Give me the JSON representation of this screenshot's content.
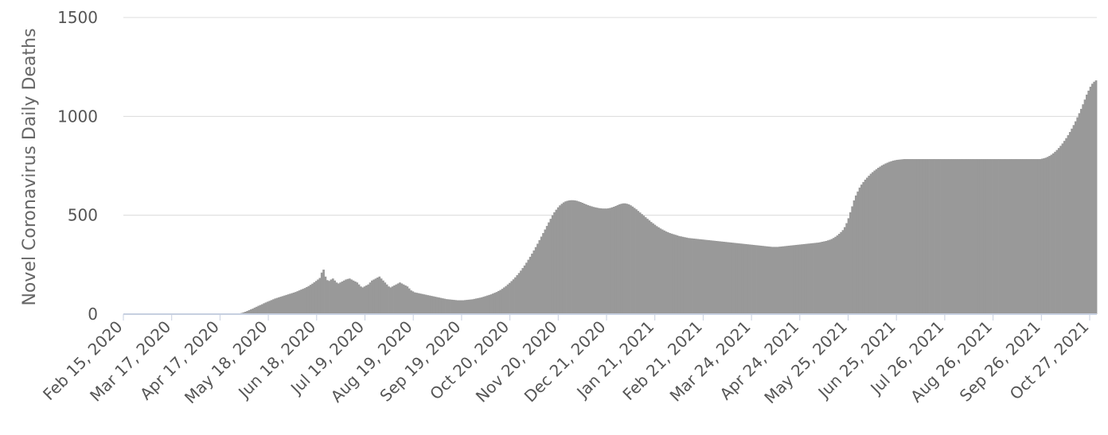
{
  "chart_data": {
    "type": "bar",
    "ylabel": "Novel Coronavirus Daily Deaths",
    "xlabel": "",
    "ylim": [
      0,
      1500
    ],
    "yticks": [
      "0",
      "500",
      "1000",
      "1500"
    ],
    "grid": true,
    "series_color": "#999999",
    "x_tick_labels": [
      "Feb 15, 2020",
      "Mar 17, 2020",
      "Apr 17, 2020",
      "May 18, 2020",
      "Jun 18, 2020",
      "Jul 19, 2020",
      "Aug 19, 2020",
      "Sep 19, 2020",
      "Oct 20, 2020",
      "Nov 20, 2020",
      "Dec 21, 2020",
      "Jan 21, 2021",
      "Feb 21, 2021",
      "Mar 24, 2021",
      "Apr 24, 2021",
      "May 25, 2021",
      "Jun 25, 2021",
      "Jul 26, 2021",
      "Aug 26, 2021",
      "Sep 26, 2021",
      "Oct 27, 2021"
    ],
    "x_start": "Feb 15, 2020",
    "x_end": "Nov 6, 2021",
    "series": [
      {
        "values": [
          0,
          0,
          0,
          0,
          0,
          0,
          0,
          0,
          0,
          0,
          0,
          0,
          0,
          0,
          0,
          0,
          0,
          0,
          0,
          0,
          0,
          0,
          0,
          0,
          0,
          0,
          0,
          0,
          0,
          0,
          0,
          0,
          0,
          0,
          0,
          0,
          0,
          0,
          0,
          0,
          0,
          0,
          0,
          0,
          0,
          0,
          0,
          0,
          0,
          0,
          0,
          0,
          0,
          0,
          0,
          0,
          0,
          0,
          0,
          0,
          0,
          2,
          4,
          6,
          9,
          12,
          16,
          20,
          24,
          28,
          33,
          37,
          42,
          46,
          50,
          55,
          59,
          63,
          67,
          71,
          75,
          79,
          82,
          85,
          88,
          91,
          94,
          97,
          100,
          103,
          106,
          109,
          112,
          116,
          120,
          124,
          128,
          132,
          137,
          142,
          148,
          154,
          161,
          168,
          175,
          183,
          210,
          225,
          190,
          172,
          168,
          175,
          180,
          170,
          160,
          155,
          160,
          165,
          170,
          175,
          178,
          180,
          175,
          170,
          165,
          160,
          150,
          140,
          135,
          140,
          145,
          150,
          160,
          170,
          175,
          180,
          185,
          190,
          180,
          170,
          160,
          150,
          140,
          135,
          140,
          145,
          150,
          155,
          160,
          155,
          150,
          145,
          140,
          130,
          120,
          115,
          110,
          108,
          106,
          104,
          102,
          100,
          98,
          96,
          94,
          92,
          90,
          88,
          86,
          84,
          82,
          80,
          78,
          76,
          75,
          74,
          73,
          72,
          71,
          70,
          70,
          70,
          70,
          71,
          72,
          73,
          74,
          75,
          77,
          79,
          81,
          83,
          85,
          88,
          91,
          94,
          97,
          100,
          104,
          108,
          112,
          117,
          122,
          128,
          135,
          142,
          150,
          158,
          167,
          176,
          186,
          197,
          208,
          220,
          233,
          246,
          260,
          275,
          290,
          306,
          322,
          339,
          356,
          374,
          392,
          410,
          428,
          446,
          464,
          482,
          500,
          515,
          528,
          540,
          550,
          558,
          565,
          570,
          573,
          575,
          576,
          576,
          575,
          573,
          570,
          567,
          563,
          559,
          555,
          551,
          548,
          545,
          542,
          540,
          538,
          536,
          535,
          534,
          534,
          534,
          535,
          537,
          540,
          543,
          547,
          551,
          555,
          558,
          560,
          560,
          558,
          555,
          550,
          544,
          537,
          530,
          522,
          514,
          506,
          498,
          490,
          482,
          474,
          466,
          459,
          452,
          445,
          439,
          433,
          428,
          423,
          418,
          414,
          410,
          407,
          404,
          401,
          398,
          395,
          393,
          391,
          389,
          387,
          385,
          384,
          383,
          382,
          381,
          380,
          379,
          378,
          377,
          376,
          375,
          374,
          373,
          372,
          371,
          370,
          369,
          368,
          367,
          366,
          365,
          364,
          363,
          362,
          361,
          360,
          359,
          358,
          357,
          356,
          355,
          354,
          353,
          352,
          351,
          350,
          349,
          348,
          347,
          346,
          345,
          344,
          343,
          342,
          341,
          340,
          340,
          340,
          340,
          341,
          342,
          343,
          344,
          345,
          346,
          347,
          348,
          349,
          350,
          351,
          352,
          353,
          354,
          355,
          356,
          357,
          358,
          359,
          360,
          361,
          362,
          364,
          366,
          368,
          370,
          373,
          376,
          380,
          385,
          391,
          398,
          406,
          415,
          425,
          440,
          460,
          485,
          515,
          545,
          575,
          600,
          620,
          640,
          655,
          668,
          680,
          690,
          700,
          710,
          718,
          726,
          733,
          740,
          746,
          752,
          757,
          762,
          766,
          770,
          773,
          776,
          778,
          780,
          781,
          782,
          783,
          784,
          784,
          784,
          784,
          784,
          784,
          784,
          784,
          784,
          784,
          784,
          784,
          784,
          784,
          784,
          784,
          784,
          784,
          784,
          784,
          784,
          784,
          784,
          784,
          784,
          784,
          784,
          784,
          784,
          784,
          784,
          784,
          784,
          784,
          784,
          784,
          784,
          784,
          784,
          784,
          784,
          784,
          784,
          784,
          784,
          784,
          784,
          784,
          784,
          784,
          784,
          784,
          784,
          784,
          784,
          784,
          784,
          784,
          784,
          784,
          784,
          784,
          784,
          784,
          784,
          784,
          784,
          784,
          784,
          784,
          784,
          784,
          784,
          784,
          786,
          788,
          791,
          795,
          800,
          806,
          813,
          821,
          830,
          840,
          851,
          863,
          876,
          890,
          905,
          921,
          938,
          956,
          975,
          995,
          1016,
          1038,
          1061,
          1085,
          1110,
          1130,
          1150,
          1165,
          1175,
          1182
        ]
      }
    ]
  }
}
